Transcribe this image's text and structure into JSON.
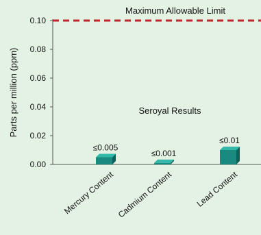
{
  "colors": {
    "background": "#e4f2e3",
    "bar_front": "#1a8a7f",
    "bar_top": "#33b8aa",
    "bar_side": "#0e6058",
    "limit_line": "#c0252e",
    "axis": "#555555",
    "text": "#111111"
  },
  "chart_data": {
    "type": "bar",
    "title": "",
    "xlabel": "",
    "ylabel": "Parts per million (ppm)",
    "ylim": [
      0,
      0.1
    ],
    "yticks": [
      "0.00",
      "0.02",
      "0.04",
      "0.06",
      "0.08",
      "0.10"
    ],
    "ytick_values": [
      0,
      0.02,
      0.04,
      0.06,
      0.08,
      0.1
    ],
    "categories": [
      "Mercury Content",
      "Cadmium Content",
      "Lead Content"
    ],
    "series": [
      {
        "name": "Seroyal Results",
        "values": [
          0.005,
          0.001,
          0.01
        ]
      }
    ],
    "data_labels": [
      "≤0.005",
      "≤0.001",
      "≤0.01"
    ],
    "reference_line": {
      "label": "Maximum Allowable Limit",
      "value": 0.1,
      "style": "dashed"
    },
    "series_annotation": "Seroyal Results",
    "grid": false,
    "bar_style": "3d"
  }
}
